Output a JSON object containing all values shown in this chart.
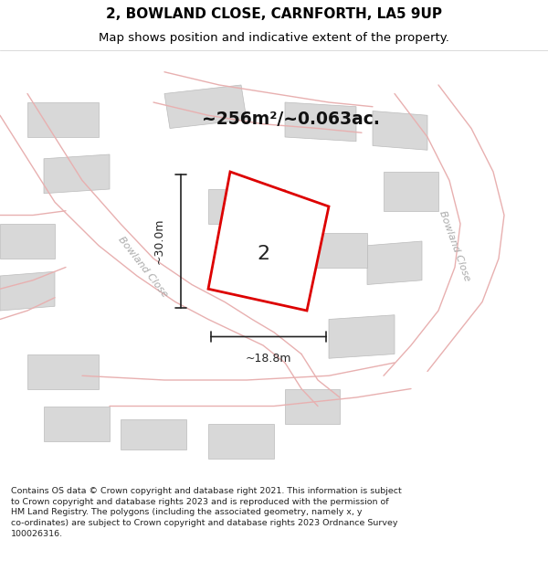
{
  "title": "2, BOWLAND CLOSE, CARNFORTH, LA5 9UP",
  "subtitle": "Map shows position and indicative extent of the property.",
  "area_label": "~256m²/~0.063ac.",
  "width_label": "~18.8m",
  "height_label": "~30.0m",
  "plot_number": "2",
  "footer_lines": "Contains OS data © Crown copyright and database right 2021. This information is subject\nto Crown copyright and database rights 2023 and is reproduced with the permission of\nHM Land Registry. The polygons (including the associated geometry, namely x, y\nco-ordinates) are subject to Crown copyright and database rights 2023 Ordnance Survey\n100026316.",
  "bg_color": "#f5f0f0",
  "road_color": "#e8b0b0",
  "building_color": "#d8d8d8",
  "building_edge_color": "#bbbbbb",
  "plot_color": "#ffffff",
  "plot_edge_color": "#dd0000",
  "road_label_color": "#aaaaaa",
  "title_color": "#000000",
  "map_bg": "#f7f2f2",
  "header_bg": "#ffffff",
  "footer_bg": "#ffffff"
}
